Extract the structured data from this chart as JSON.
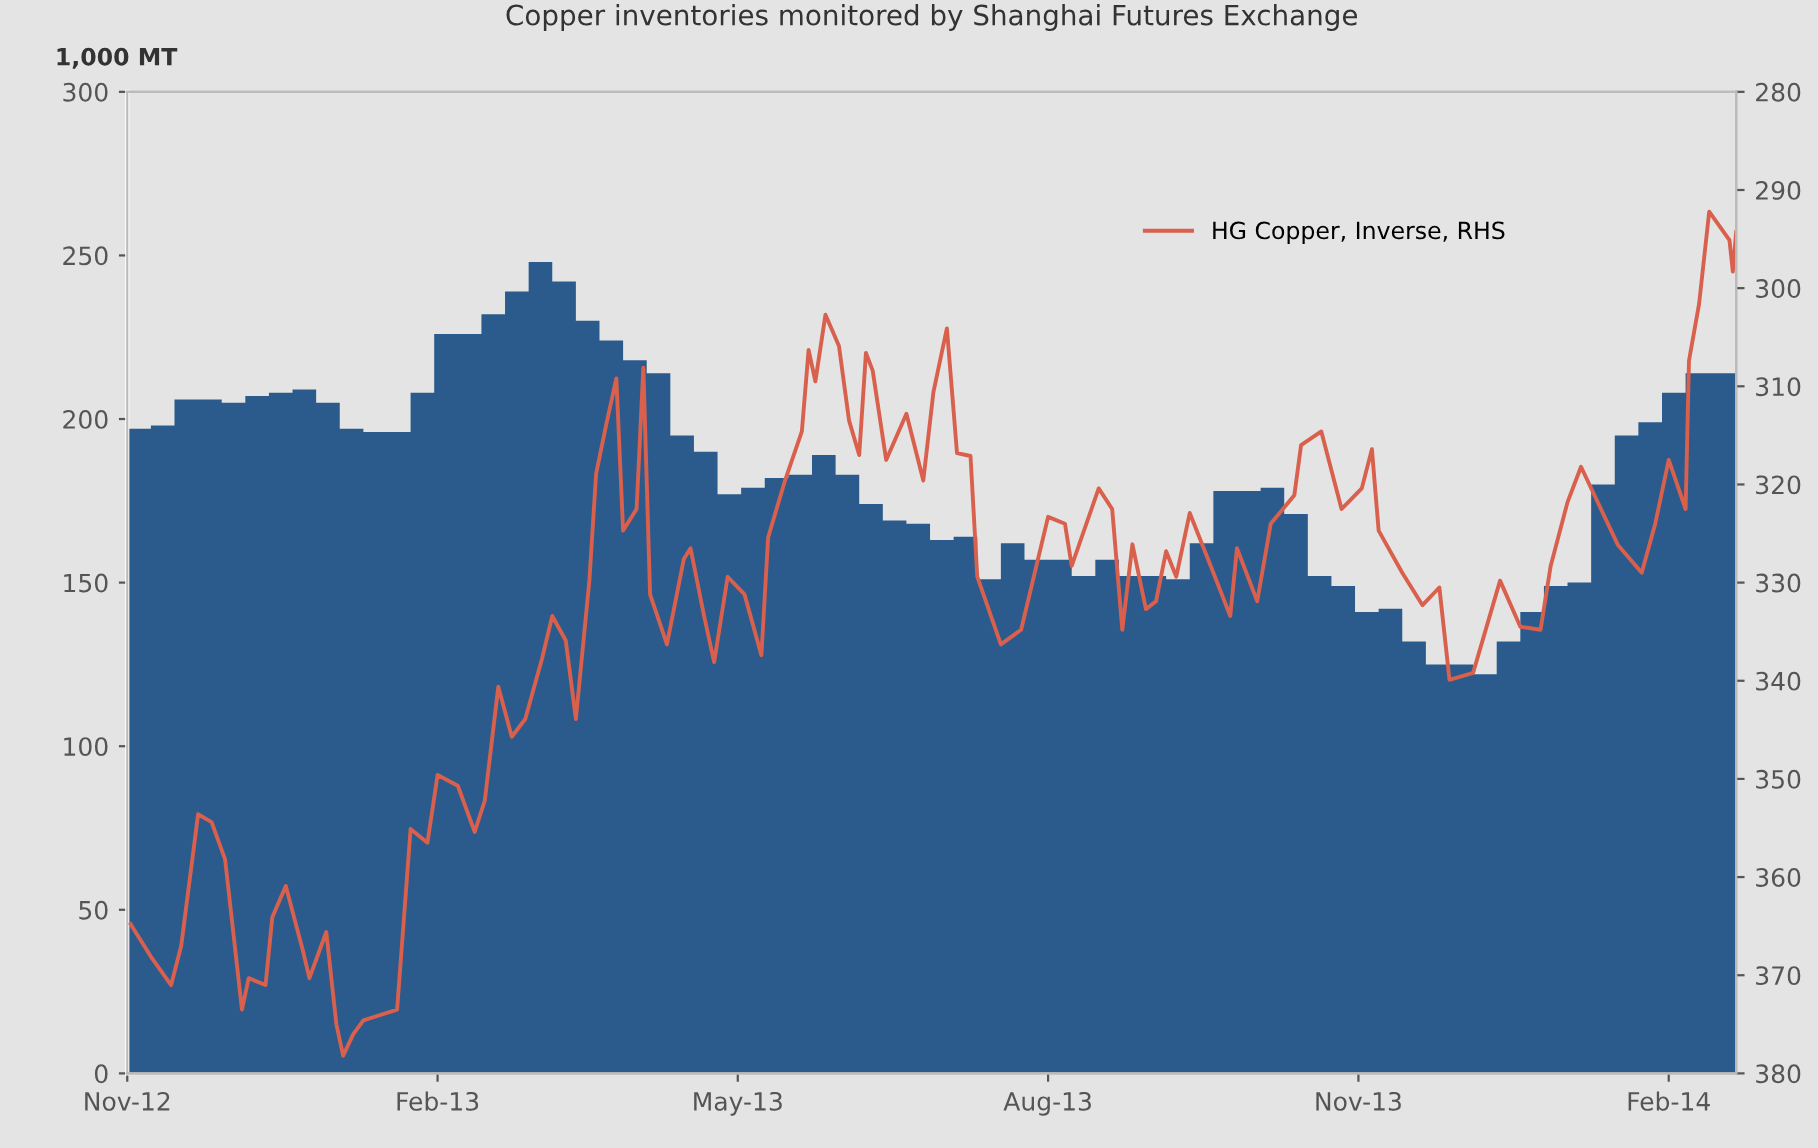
{
  "chart_data": {
    "type": "area",
    "title": "Copper inventories monitored by Shanghai Futures Exchange",
    "ylabel": "1,000 MT",
    "xlim": [
      "2012-11-01",
      "2014-02-21"
    ],
    "xticks": [
      {
        "value": "2012-11-01",
        "label": "Nov-12"
      },
      {
        "value": "2013-02-01",
        "label": "Feb-13"
      },
      {
        "value": "2013-05-01",
        "label": "May-13"
      },
      {
        "value": "2013-08-01",
        "label": "Aug-13"
      },
      {
        "value": "2013-11-01",
        "label": "Nov-13"
      },
      {
        "value": "2014-02-01",
        "label": "Feb-14"
      }
    ],
    "ylim": [
      0,
      300
    ],
    "yticks": [
      0,
      50,
      100,
      150,
      200,
      250,
      300
    ],
    "y2lim": [
      380,
      280
    ],
    "y2ticks": [
      280,
      290,
      300,
      310,
      320,
      330,
      340,
      350,
      360,
      370,
      380
    ],
    "legend": "top right",
    "grid": false,
    "series": [
      {
        "color": "#2a5b8c",
        "x": [
          "2012-11-01",
          "2012-11-08",
          "2012-11-15",
          "2012-11-22",
          "2012-11-29",
          "2012-12-06",
          "2012-12-13",
          "2012-12-20",
          "2012-12-27",
          "2013-01-03",
          "2013-01-10",
          "2013-01-17",
          "2013-01-24",
          "2013-01-31",
          "2013-02-07",
          "2013-02-14",
          "2013-02-21",
          "2013-02-28",
          "2013-03-07",
          "2013-03-14",
          "2013-03-21",
          "2013-03-28",
          "2013-04-04",
          "2013-04-11",
          "2013-04-18",
          "2013-04-25",
          "2013-05-02",
          "2013-05-09",
          "2013-05-16",
          "2013-05-23",
          "2013-05-30",
          "2013-06-06",
          "2013-06-13",
          "2013-06-20",
          "2013-06-27",
          "2013-07-04",
          "2013-07-11",
          "2013-07-18",
          "2013-07-25",
          "2013-08-01",
          "2013-08-08",
          "2013-08-15",
          "2013-08-22",
          "2013-08-29",
          "2013-09-05",
          "2013-09-12",
          "2013-09-19",
          "2013-09-26",
          "2013-10-03",
          "2013-10-10",
          "2013-10-17",
          "2013-10-24",
          "2013-10-31",
          "2013-11-07",
          "2013-11-14",
          "2013-11-21",
          "2013-11-28",
          "2013-12-05",
          "2013-12-12",
          "2013-12-19",
          "2013-12-26",
          "2014-01-02",
          "2014-01-09",
          "2014-01-16",
          "2014-01-23",
          "2014-01-30",
          "2014-02-06",
          "2014-02-13",
          "2014-02-21"
        ],
        "values": [
          197,
          198,
          206,
          206,
          205,
          207,
          208,
          209,
          205,
          197,
          196,
          196,
          208,
          226,
          226,
          232,
          239,
          248,
          242,
          230,
          224,
          218,
          214,
          195,
          190,
          177,
          179,
          182,
          183,
          189,
          183,
          174,
          169,
          168,
          163,
          164,
          151,
          162,
          157,
          157,
          152,
          157,
          152,
          152,
          151,
          162,
          178,
          178,
          179,
          171,
          152,
          149,
          141,
          142,
          132,
          125,
          125,
          122,
          132,
          141,
          149,
          150,
          180,
          195,
          199,
          208,
          214,
          214,
          214
        ]
      },
      {
        "type": "line",
        "name": "HG Copper, Inverse, RHS",
        "axis": "y2",
        "color": "#d9604d",
        "x": [
          "2012-11-02",
          "2012-11-08",
          "2012-11-14",
          "2012-11-17",
          "2012-11-22",
          "2012-11-26",
          "2012-11-30",
          "2012-12-05",
          "2012-12-07",
          "2012-12-12",
          "2012-12-14",
          "2012-12-18",
          "2012-12-23",
          "2012-12-25",
          "2012-12-30",
          "2013-01-02",
          "2013-01-04",
          "2013-01-07",
          "2013-01-10",
          "2013-01-20",
          "2013-01-24",
          "2013-01-29",
          "2013-02-01",
          "2013-02-07",
          "2013-02-12",
          "2013-02-15",
          "2013-02-19",
          "2013-02-23",
          "2013-02-27",
          "2013-03-04",
          "2013-03-07",
          "2013-03-11",
          "2013-03-14",
          "2013-03-18",
          "2013-03-20",
          "2013-03-23",
          "2013-03-26",
          "2013-03-28",
          "2013-04-01",
          "2013-04-03",
          "2013-04-05",
          "2013-04-10",
          "2013-04-15",
          "2013-04-17",
          "2013-04-21",
          "2013-04-24",
          "2013-04-28",
          "2013-05-03",
          "2013-05-08",
          "2013-05-10",
          "2013-05-15",
          "2013-05-20",
          "2013-05-22",
          "2013-05-24",
          "2013-05-27",
          "2013-05-31",
          "2013-06-03",
          "2013-06-06",
          "2013-06-08",
          "2013-06-10",
          "2013-06-14",
          "2013-06-20",
          "2013-06-25",
          "2013-06-28",
          "2013-07-02",
          "2013-07-05",
          "2013-07-09",
          "2013-07-11",
          "2013-07-18",
          "2013-07-24",
          "2013-07-27",
          "2013-08-01",
          "2013-08-06",
          "2013-08-08",
          "2013-08-16",
          "2013-08-20",
          "2013-08-23",
          "2013-08-26",
          "2013-08-30",
          "2013-09-02",
          "2013-09-05",
          "2013-09-08",
          "2013-09-12",
          "2013-09-19",
          "2013-09-24",
          "2013-09-26",
          "2013-10-02",
          "2013-10-06",
          "2013-10-13",
          "2013-10-15",
          "2013-10-21",
          "2013-10-27",
          "2013-11-02",
          "2013-11-05",
          "2013-11-07",
          "2013-11-14",
          "2013-11-20",
          "2013-11-25",
          "2013-11-28",
          "2013-12-05",
          "2013-12-13",
          "2013-12-19",
          "2013-12-25",
          "2013-12-28",
          "2014-01-02",
          "2014-01-06",
          "2014-01-13",
          "2014-01-17",
          "2014-01-24",
          "2014-01-28",
          "2014-02-01",
          "2014-02-06",
          "2014-02-07",
          "2014-02-10",
          "2014-02-13",
          "2014-02-19",
          "2014-02-20",
          "2014-02-21"
        ],
        "values": [
          364.8,
          368.1,
          371.0,
          367.0,
          353.6,
          354.4,
          358.2,
          373.5,
          370.3,
          371.0,
          364.1,
          360.9,
          367.4,
          370.3,
          365.6,
          375.0,
          378.2,
          376.0,
          374.6,
          373.5,
          355.1,
          356.5,
          349.6,
          350.7,
          355.4,
          352.2,
          340.6,
          345.7,
          343.9,
          337.7,
          333.4,
          335.9,
          343.9,
          329.8,
          318.9,
          313.9,
          309.2,
          324.7,
          322.5,
          308.1,
          331.2,
          336.3,
          327.6,
          326.5,
          333.4,
          338.1,
          329.4,
          331.2,
          337.4,
          325.4,
          319.6,
          314.6,
          306.3,
          309.5,
          302.7,
          305.9,
          313.5,
          317.0,
          306.6,
          308.4,
          317.5,
          312.8,
          319.6,
          310.6,
          304.1,
          316.8,
          317.1,
          329.4,
          336.3,
          334.8,
          330.5,
          323.3,
          324.0,
          328.3,
          320.4,
          322.5,
          334.8,
          326.1,
          332.7,
          331.9,
          326.8,
          329.4,
          322.9,
          329.0,
          333.4,
          326.5,
          331.9,
          324.0,
          321.1,
          316.0,
          314.6,
          322.5,
          320.4,
          316.4,
          324.7,
          329.0,
          332.3,
          330.5,
          339.9,
          339.2,
          329.8,
          334.5,
          334.8,
          328.3,
          321.8,
          318.2,
          323.3,
          326.2,
          329.0,
          324.0,
          317.5,
          322.5,
          307.4,
          301.6,
          292.2,
          295.1,
          298.3,
          294.3
        ]
      }
    ]
  }
}
